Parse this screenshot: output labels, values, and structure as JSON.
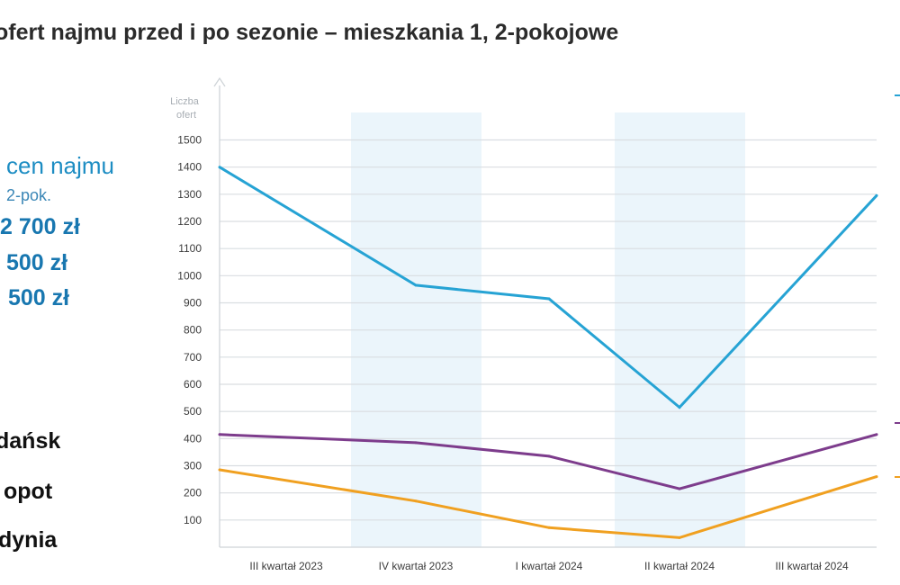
{
  "title": "ofert najmu przed i po sezonie – mieszkania 1, 2-pokojowe",
  "sidebar": {
    "prices_heading": "cen najmu",
    "prices_subheading": "2-pok.",
    "prices": [
      "2 700 zł",
      "500 zł",
      "500 zł"
    ],
    "cities": [
      "dańsk",
      "opot",
      "dynia"
    ]
  },
  "chart_data": {
    "type": "line",
    "ylabel": "Liczba ofert",
    "ylabel_lines": [
      "Liczba",
      "ofert"
    ],
    "categories": [
      "III kwartał 2023",
      "IV kwartał 2023",
      "I kwartał 2024",
      "II kwartał 2024",
      "III kwartał 2024"
    ],
    "yticks": [
      100,
      200,
      300,
      400,
      500,
      600,
      700,
      800,
      900,
      1000,
      1100,
      1200,
      1300,
      1400,
      1500
    ],
    "ylim": [
      0,
      1500
    ],
    "grid": true,
    "shaded_categories": [
      1,
      3
    ],
    "series": [
      {
        "color": "#26a3d4",
        "values": [
          1400,
          965,
          915,
          515,
          1295
        ]
      },
      {
        "color": "#7d3c8c",
        "values": [
          415,
          385,
          335,
          215,
          415
        ]
      },
      {
        "color": "#f0a020",
        "values": [
          285,
          170,
          72,
          35,
          260
        ]
      }
    ]
  }
}
